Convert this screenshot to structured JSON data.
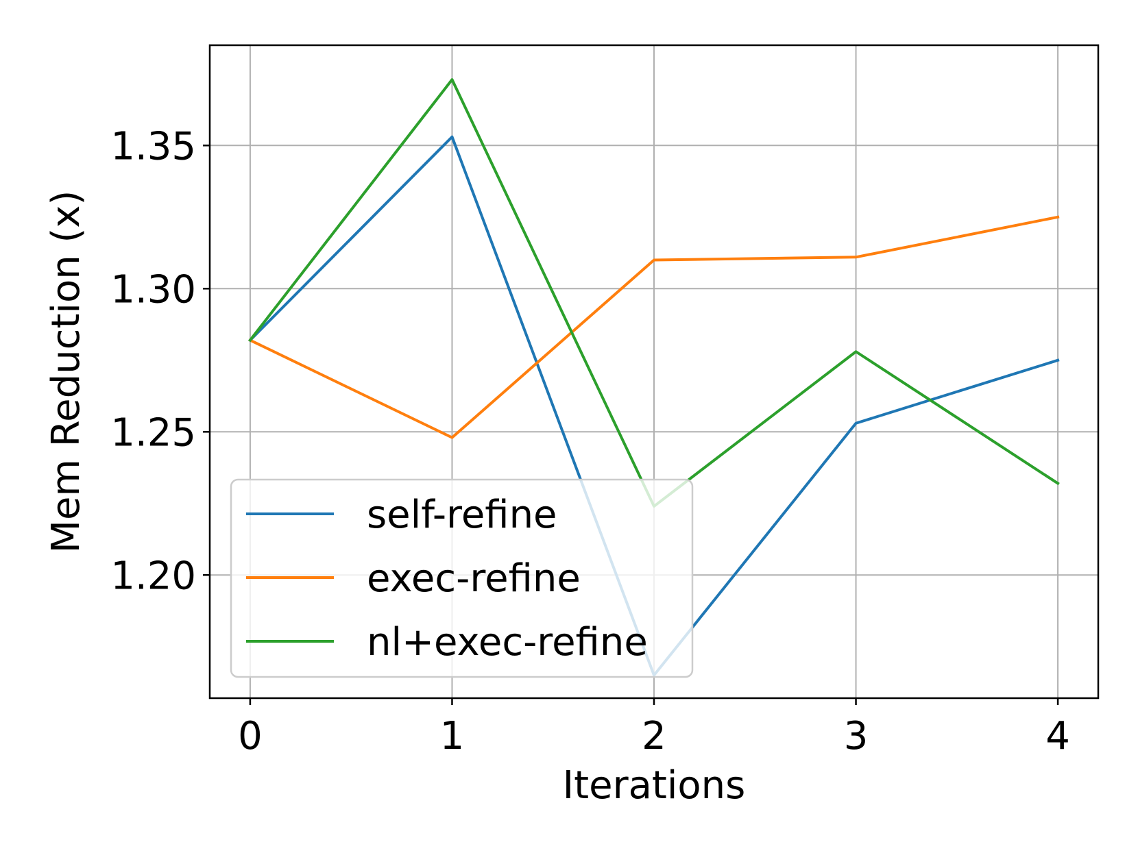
{
  "chart_data": {
    "type": "line",
    "xlabel": "Iterations",
    "ylabel": "Mem Reduction (x)",
    "x": [
      0,
      1,
      2,
      3,
      4
    ],
    "xticks": [
      "0",
      "1",
      "2",
      "3",
      "4"
    ],
    "yticks": [
      "1.20",
      "1.25",
      "1.30",
      "1.35"
    ],
    "ytick_values": [
      1.2,
      1.25,
      1.3,
      1.35
    ],
    "xlim": [
      -0.2,
      4.2
    ],
    "ylim": [
      1.157,
      1.385
    ],
    "grid": true,
    "legend_position": "lower-left",
    "series": [
      {
        "name": "self-refine",
        "color": "#1f77b4",
        "values": [
          1.282,
          1.353,
          1.165,
          1.253,
          1.275
        ]
      },
      {
        "name": "exec-refine",
        "color": "#ff7f0e",
        "values": [
          1.282,
          1.248,
          1.31,
          1.311,
          1.325
        ]
      },
      {
        "name": "nl+exec-refine",
        "color": "#2ca02c",
        "values": [
          1.282,
          1.373,
          1.224,
          1.278,
          1.232
        ]
      }
    ]
  }
}
